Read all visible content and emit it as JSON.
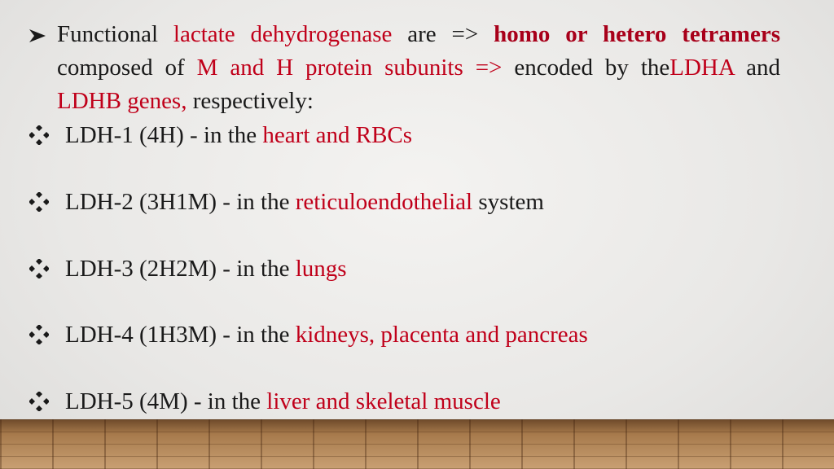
{
  "intro": [
    "Functional",
    "lactate dehydrogenase",
    "are =>",
    "homo or hetero tetramers",
    "composed of",
    "M and H protein subunits =>",
    "encoded by the",
    "LDHA",
    "and",
    "LDHB genes,",
    "respectively:"
  ],
  "items": [
    [
      "LDH-1 (4H) - in the",
      "heart and RBCs"
    ],
    [
      "LDH-2 (3H1M) - in the",
      "reticuloendothelial",
      "system"
    ],
    [
      "LDH-3 (2H2M) - in the",
      "lungs"
    ],
    [
      "LDH-4 (1H3M) - in the",
      "kidneys, placenta and pancreas"
    ],
    [
      "LDH-5 (4M) - in the",
      "liver and skeletal muscle"
    ]
  ]
}
